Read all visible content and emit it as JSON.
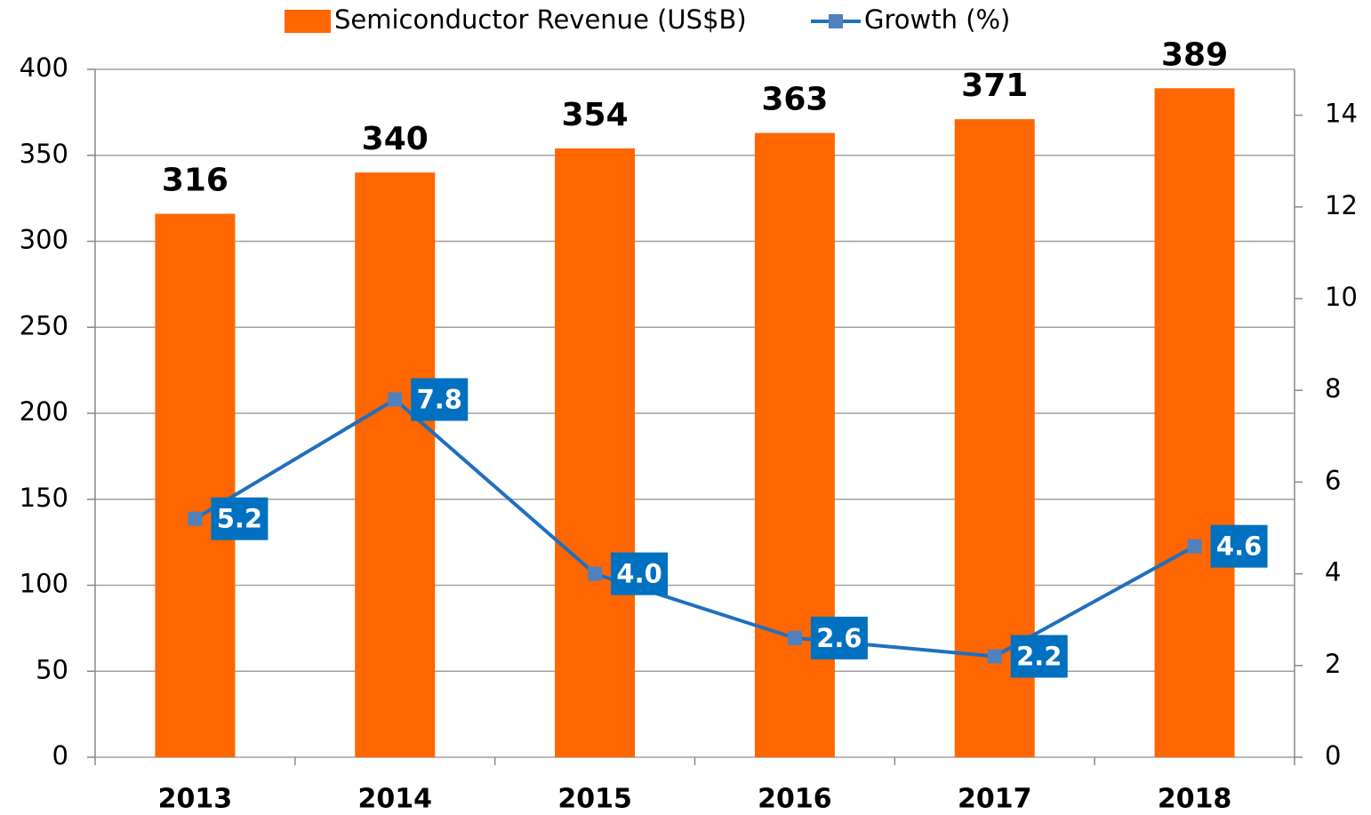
{
  "chart_data": {
    "type": "bar",
    "categories": [
      "2013",
      "2014",
      "2015",
      "2016",
      "2017",
      "2018"
    ],
    "series": [
      {
        "name": "Semiconductor Revenue (US$B)",
        "type": "bar",
        "color": "#ff6600",
        "values": [
          316,
          340,
          354,
          363,
          371,
          389
        ]
      },
      {
        "name": "Growth (%)",
        "type": "line",
        "axis": "y2",
        "color": "#1f6fbf",
        "marker_color": "#4f81bd",
        "label_color": "#0070c0",
        "values": [
          5.2,
          7.8,
          4.0,
          2.6,
          2.2,
          4.6
        ],
        "value_labels": [
          "5.2",
          "7.8",
          "4.0",
          "2.6",
          "2.2",
          "4.6"
        ]
      }
    ],
    "ylim": [
      0,
      400
    ],
    "yticks": [
      0,
      50,
      100,
      150,
      200,
      250,
      300,
      350,
      400
    ],
    "y2lim": [
      0,
      15
    ],
    "y2ticks": [
      0,
      2,
      4,
      6,
      8,
      10,
      12,
      14
    ],
    "grid": true,
    "legend": "top"
  }
}
